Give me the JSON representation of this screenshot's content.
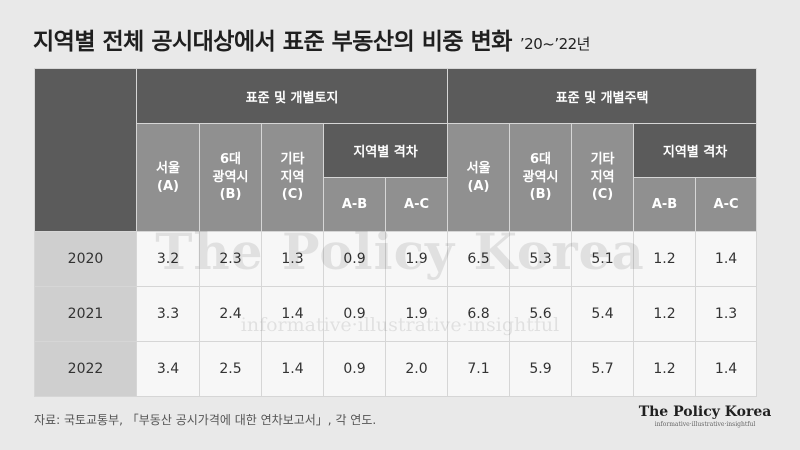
{
  "title": "지역별 전체 공시대상에서 표준 부동산의 비중 변화",
  "period": "’20~’22년",
  "watermark": {
    "name": "The Policy Korea",
    "tagline": "informative·illustrative·insightful"
  },
  "source": "자료: 국토교통부, 「부동산 공시가격에 대한 연차보고서」, 각 연도.",
  "logo": {
    "name": "The Policy Korea",
    "tagline": "informative·illustrative·insightful"
  },
  "chart_data": {
    "type": "table",
    "groups": [
      "표준 및 개별토지",
      "표준 및 개별주택"
    ],
    "group_columns": {
      "seoul": "서울\n(A)",
      "metro": "6대\n광역시\n(B)",
      "other": "기타\n지역\n(C)",
      "gap": "지역별 격차",
      "ab": "A-B",
      "ac": "A-C"
    },
    "rows": [
      {
        "year": "2020",
        "land": [
          "3.2",
          "2.3",
          "1.3",
          "0.9",
          "1.9"
        ],
        "housing": [
          "6.5",
          "5.3",
          "5.1",
          "1.2",
          "1.4"
        ]
      },
      {
        "year": "2021",
        "land": [
          "3.3",
          "2.4",
          "1.4",
          "0.9",
          "1.9"
        ],
        "housing": [
          "6.8",
          "5.6",
          "5.4",
          "1.2",
          "1.3"
        ]
      },
      {
        "year": "2022",
        "land": [
          "3.4",
          "2.5",
          "1.4",
          "0.9",
          "2.0"
        ],
        "housing": [
          "7.1",
          "5.9",
          "5.7",
          "1.2",
          "1.4"
        ]
      }
    ]
  }
}
